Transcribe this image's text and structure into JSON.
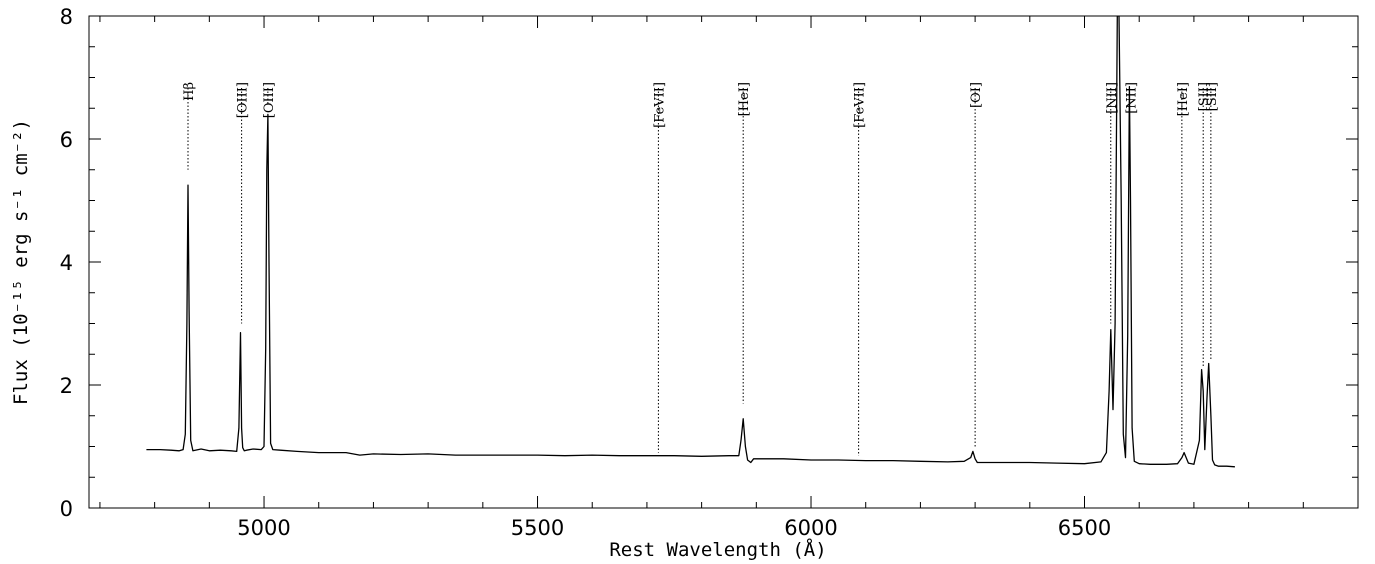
{
  "chart_data": {
    "type": "line",
    "title": "",
    "xlabel": "Rest Wavelength (Å)",
    "ylabel": "Flux (10⁻¹⁵ erg s⁻¹ cm⁻²)",
    "xlim": [
      4680,
      7000
    ],
    "ylim": [
      0,
      8
    ],
    "xticks": [
      5000,
      5500,
      6000,
      6500
    ],
    "yticks": [
      0,
      2,
      4,
      6,
      8
    ],
    "grid": false,
    "line_color": "#000000",
    "series": [
      {
        "x": [
          4785,
          4810,
          4830,
          4845,
          4852,
          4856,
          4859,
          4861,
          4863,
          4866,
          4870,
          4885,
          4900,
          4920,
          4940,
          4950,
          4954,
          4957,
          4959,
          4961,
          4964,
          4968,
          4980,
          4995,
          5000,
          5003,
          5005,
          5007,
          5009,
          5012,
          5016,
          5030,
          5060,
          5100,
          5150,
          5175,
          5200,
          5250,
          5300,
          5350,
          5400,
          5450,
          5500,
          5550,
          5600,
          5650,
          5700,
          5750,
          5800,
          5850,
          5868,
          5872,
          5876,
          5880,
          5884,
          5890,
          5895,
          5910,
          5950,
          6000,
          6050,
          6100,
          6150,
          6200,
          6250,
          6280,
          6292,
          6296,
          6300,
          6304,
          6310,
          6350,
          6400,
          6450,
          6500,
          6530,
          6540,
          6545,
          6548,
          6552,
          6556,
          6560,
          6563,
          6567,
          6571,
          6575,
          6579,
          6582,
          6584,
          6587,
          6591,
          6600,
          6620,
          6650,
          6670,
          6678,
          6682,
          6690,
          6700,
          6710,
          6714,
          6717,
          6720,
          6724,
          6727,
          6731,
          6734,
          6738,
          6745,
          6760,
          6775
        ],
        "y": [
          0.95,
          0.95,
          0.94,
          0.93,
          0.95,
          1.2,
          3.0,
          5.25,
          3.2,
          1.1,
          0.93,
          0.96,
          0.93,
          0.94,
          0.93,
          0.92,
          1.3,
          2.85,
          1.3,
          0.98,
          0.93,
          0.94,
          0.96,
          0.95,
          1.0,
          2.6,
          5.5,
          6.4,
          4.0,
          1.05,
          0.95,
          0.94,
          0.92,
          0.9,
          0.9,
          0.86,
          0.88,
          0.87,
          0.88,
          0.86,
          0.86,
          0.86,
          0.86,
          0.85,
          0.86,
          0.85,
          0.85,
          0.85,
          0.84,
          0.85,
          0.85,
          1.1,
          1.45,
          1.0,
          0.78,
          0.74,
          0.8,
          0.8,
          0.8,
          0.78,
          0.78,
          0.77,
          0.77,
          0.76,
          0.75,
          0.76,
          0.82,
          0.92,
          0.8,
          0.74,
          0.74,
          0.74,
          0.74,
          0.73,
          0.72,
          0.75,
          0.9,
          1.9,
          2.9,
          1.6,
          3.0,
          8.0,
          8.0,
          5.0,
          1.2,
          0.82,
          2.8,
          6.85,
          5.0,
          1.3,
          0.76,
          0.72,
          0.71,
          0.71,
          0.72,
          0.82,
          0.9,
          0.73,
          0.71,
          1.1,
          2.25,
          1.9,
          0.95,
          1.8,
          2.35,
          1.5,
          0.78,
          0.7,
          0.68,
          0.68,
          0.67
        ]
      }
    ],
    "annotations": [
      {
        "label": "Hβ",
        "x": 4861,
        "y_top": 6.9,
        "y_bottom": 5.5
      },
      {
        "label": "[OIII]",
        "x": 4959,
        "y_top": 6.9,
        "y_bottom": 3.0
      },
      {
        "label": "[OIII]",
        "x": 5007,
        "y_top": 6.9,
        "y_bottom": 6.55
      },
      {
        "label": "[FeVII]",
        "x": 5721,
        "y_top": 6.9,
        "y_bottom": 0.9
      },
      {
        "label": "[HeI]",
        "x": 5876,
        "y_top": 6.9,
        "y_bottom": 1.7
      },
      {
        "label": "[FeVII]",
        "x": 6087,
        "y_top": 6.9,
        "y_bottom": 0.85
      },
      {
        "label": "[OI]",
        "x": 6300,
        "y_top": 6.9,
        "y_bottom": 1.0
      },
      {
        "label": "[NII]",
        "x": 6548,
        "y_top": 6.9,
        "y_bottom": 3.0
      },
      {
        "label": "[NII]",
        "x": 6584,
        "y_top": 6.9,
        "y_bottom": 6.9
      },
      {
        "label": "[HeI]",
        "x": 6678,
        "y_top": 6.9,
        "y_bottom": 0.95
      },
      {
        "label": "[SII]",
        "x": 6717,
        "y_top": 6.9,
        "y_bottom": 2.3
      },
      {
        "label": "[SII]",
        "x": 6731,
        "y_top": 6.9,
        "y_bottom": 2.4
      }
    ]
  }
}
